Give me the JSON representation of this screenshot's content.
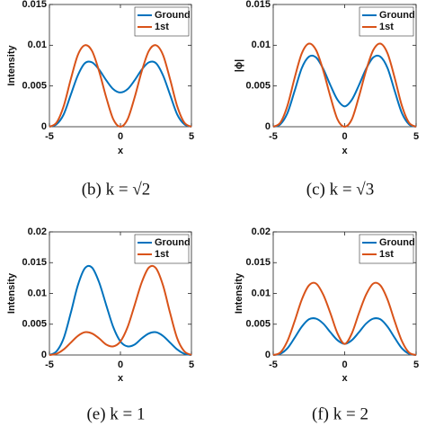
{
  "chart_data": [
    {
      "type": "line",
      "caption": "(b) k = √2",
      "ylabel": "Intensity",
      "xlabel": "x",
      "x": [
        -5,
        -4.5,
        -4,
        -3.5,
        -3,
        -2.5,
        -2,
        -1.5,
        -1,
        -0.5,
        0,
        0.5,
        1,
        1.5,
        2,
        2.5,
        3,
        3.5,
        4,
        4.5,
        5
      ],
      "xlim": [
        -5,
        5
      ],
      "xticks": [
        -5,
        0,
        5
      ],
      "ylim": [
        0,
        0.015
      ],
      "yticks": [
        0,
        0.005,
        0.01,
        0.015
      ],
      "legend": "upper right",
      "series": [
        {
          "name": "Ground",
          "color": "#0072bd",
          "values": [
            0,
            0.0003,
            0.0015,
            0.0039,
            0.0063,
            0.0078,
            0.0079,
            0.007,
            0.0057,
            0.0046,
            0.0042,
            0.0046,
            0.0057,
            0.007,
            0.0079,
            0.0078,
            0.0063,
            0.0039,
            0.0015,
            0.0003,
            0
          ]
        },
        {
          "name": "1st",
          "color": "#d95319",
          "values": [
            0,
            0.0005,
            0.0025,
            0.0058,
            0.0088,
            0.01,
            0.0093,
            0.0068,
            0.0036,
            0.0009,
            0,
            0.0009,
            0.0036,
            0.0068,
            0.0093,
            0.01,
            0.0088,
            0.0058,
            0.0025,
            0.0005,
            0
          ]
        }
      ]
    },
    {
      "type": "line",
      "caption": "(c) k = √3",
      "ylabel": "|ϕ|",
      "xlabel": "x",
      "x": [
        -5,
        -4.5,
        -4,
        -3.5,
        -3,
        -2.5,
        -2,
        -1.5,
        -1,
        -0.5,
        0,
        0.5,
        1,
        1.5,
        2,
        2.5,
        3,
        3.5,
        4,
        4.5,
        5
      ],
      "xlim": [
        -5,
        5
      ],
      "xticks": [
        -5,
        0,
        5
      ],
      "ylim": [
        0,
        0.015
      ],
      "yticks": [
        0,
        0.005,
        0.01,
        0.015
      ],
      "legend": "upper right",
      "series": [
        {
          "name": "Ground",
          "color": "#0072bd",
          "values": [
            0,
            0.0003,
            0.0017,
            0.0044,
            0.0072,
            0.0086,
            0.0085,
            0.0071,
            0.0051,
            0.0033,
            0.0025,
            0.0033,
            0.0051,
            0.0071,
            0.0085,
            0.0086,
            0.0072,
            0.0044,
            0.0017,
            0.0003,
            0
          ]
        },
        {
          "name": "1st",
          "color": "#d95319",
          "values": [
            0,
            0.0005,
            0.0026,
            0.006,
            0.009,
            0.0102,
            0.0094,
            0.0069,
            0.0037,
            0.0009,
            0,
            0.0009,
            0.0037,
            0.0069,
            0.0094,
            0.0102,
            0.009,
            0.006,
            0.0026,
            0.0005,
            0
          ]
        }
      ]
    },
    {
      "type": "line",
      "caption": "(e) k = 1",
      "ylabel": "Intensity",
      "xlabel": "x",
      "x": [
        -5,
        -4.5,
        -4,
        -3.5,
        -3,
        -2.5,
        -2,
        -1.5,
        -1,
        -0.5,
        0,
        0.5,
        1,
        1.5,
        2,
        2.5,
        3,
        3.5,
        4,
        4.5,
        5
      ],
      "xlim": [
        -5,
        5
      ],
      "xticks": [
        -5,
        0,
        5
      ],
      "ylim": [
        0,
        0.02
      ],
      "yticks": [
        0,
        0.005,
        0.01,
        0.015,
        0.02
      ],
      "legend": "upper right",
      "series": [
        {
          "name": "Ground",
          "color": "#0072bd",
          "values": [
            0,
            0.0006,
            0.0027,
            0.0068,
            0.0113,
            0.0141,
            0.0142,
            0.0118,
            0.0081,
            0.0045,
            0.0022,
            0.0014,
            0.0017,
            0.0027,
            0.0035,
            0.0037,
            0.0031,
            0.002,
            0.0009,
            0.0002,
            0
          ]
        },
        {
          "name": "1st",
          "color": "#d95319",
          "values": [
            0,
            0.0002,
            0.0009,
            0.002,
            0.0031,
            0.0037,
            0.0035,
            0.0027,
            0.0017,
            0.0014,
            0.0022,
            0.0045,
            0.0081,
            0.0118,
            0.0142,
            0.0141,
            0.0113,
            0.0068,
            0.0027,
            0.0006,
            0
          ]
        }
      ]
    },
    {
      "type": "line",
      "caption": "(f) k = 2",
      "ylabel": "Intensity",
      "xlabel": "x",
      "x": [
        -5,
        -4.5,
        -4,
        -3.5,
        -3,
        -2.5,
        -2,
        -1.5,
        -1,
        -0.5,
        0,
        0.5,
        1,
        1.5,
        2,
        2.5,
        3,
        3.5,
        4,
        4.5,
        5
      ],
      "xlim": [
        -5,
        5
      ],
      "xticks": [
        -5,
        0,
        5
      ],
      "ylim": [
        0,
        0.02
      ],
      "yticks": [
        0,
        0.005,
        0.01,
        0.015,
        0.02
      ],
      "legend": "upper right",
      "series": [
        {
          "name": "Ground",
          "color": "#0072bd",
          "values": [
            0,
            0.0002,
            0.0011,
            0.0028,
            0.0046,
            0.0058,
            0.0059,
            0.0051,
            0.0037,
            0.0024,
            0.0018,
            0.0024,
            0.0037,
            0.0051,
            0.0059,
            0.0058,
            0.0046,
            0.0028,
            0.0011,
            0.0002,
            0
          ]
        },
        {
          "name": "1st",
          "color": "#d95319",
          "values": [
            0,
            0.0004,
            0.0023,
            0.0055,
            0.009,
            0.0113,
            0.0116,
            0.0098,
            0.0068,
            0.0035,
            0.0018,
            0.0035,
            0.0068,
            0.0098,
            0.0116,
            0.0113,
            0.009,
            0.0055,
            0.0023,
            0.0004,
            0
          ]
        }
      ]
    }
  ]
}
